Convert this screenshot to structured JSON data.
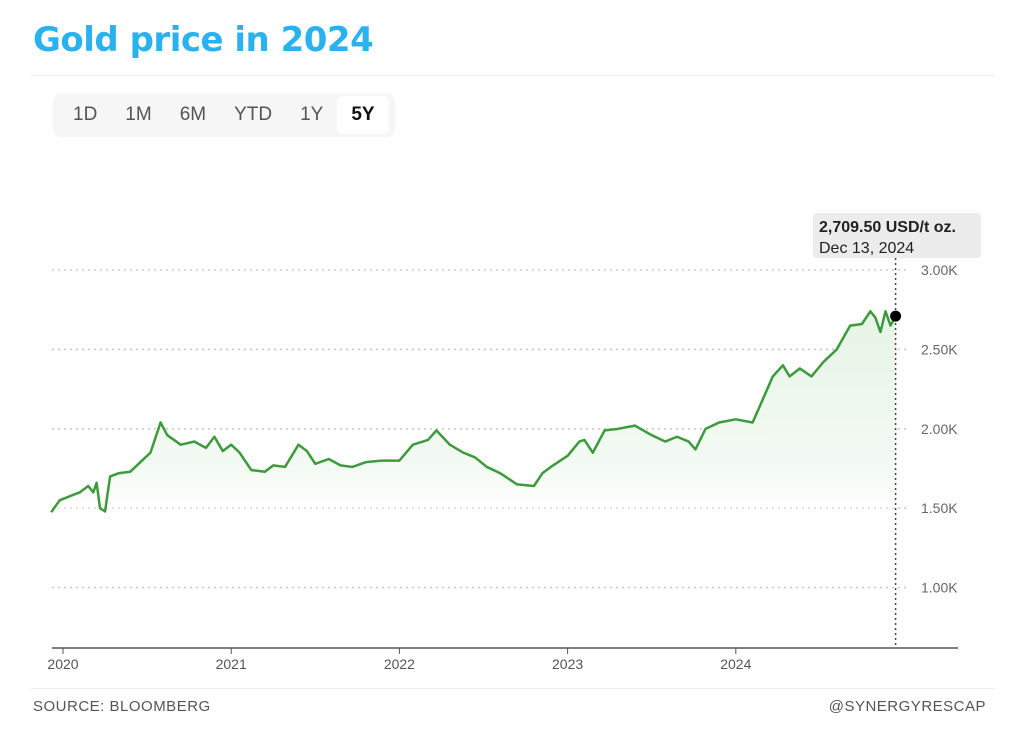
{
  "title": "Gold price in 2024",
  "tabs": [
    {
      "label": "1D"
    },
    {
      "label": "1M"
    },
    {
      "label": "6M"
    },
    {
      "label": "YTD"
    },
    {
      "label": "1Y"
    },
    {
      "label": "5Y"
    }
  ],
  "active_tab": "5Y",
  "tooltip": {
    "value": "2,709.50 USD/t oz.",
    "date": "Dec 13, 2024"
  },
  "footer": {
    "source": "SOURCE: BLOOMBERG",
    "handle": "@SYNERGYRESCAP"
  },
  "colors": {
    "title": "#29b2ef",
    "line": "#3d9a3d",
    "fill": "#e6f4e6"
  },
  "chart_data": {
    "type": "line",
    "title": "Gold price in 2024",
    "xlabel": "",
    "ylabel": "USD/t oz.",
    "ylim": [
      620,
      3000
    ],
    "xlim": [
      2019.93,
      2025.3
    ],
    "yticks": [
      {
        "v": 3000,
        "label": "3.00K"
      },
      {
        "v": 2500,
        "label": "2.50K"
      },
      {
        "v": 2000,
        "label": "2.00K"
      },
      {
        "v": 1500,
        "label": "1.50K"
      },
      {
        "v": 1000,
        "label": "1.00K"
      }
    ],
    "xticks": [
      {
        "v": 2020,
        "label": "2020"
      },
      {
        "v": 2021,
        "label": "2021"
      },
      {
        "v": 2022,
        "label": "2022"
      },
      {
        "v": 2023,
        "label": "2023"
      },
      {
        "v": 2024,
        "label": "2024"
      }
    ],
    "grid": true,
    "series": [
      {
        "name": "Gold",
        "x": [
          2019.93,
          2019.98,
          2020.05,
          2020.1,
          2020.15,
          2020.18,
          2020.2,
          2020.22,
          2020.25,
          2020.28,
          2020.33,
          2020.4,
          2020.47,
          2020.52,
          2020.58,
          2020.62,
          2020.7,
          2020.78,
          2020.85,
          2020.9,
          2020.95,
          2021.0,
          2021.05,
          2021.12,
          2021.2,
          2021.25,
          2021.32,
          2021.4,
          2021.45,
          2021.5,
          2021.58,
          2021.65,
          2021.72,
          2021.8,
          2021.9,
          2022.0,
          2022.08,
          2022.17,
          2022.22,
          2022.3,
          2022.38,
          2022.45,
          2022.52,
          2022.6,
          2022.7,
          2022.8,
          2022.85,
          2022.9,
          2023.0,
          2023.07,
          2023.1,
          2023.15,
          2023.22,
          2023.3,
          2023.4,
          2023.5,
          2023.58,
          2023.65,
          2023.72,
          2023.76,
          2023.82,
          2023.9,
          2024.0,
          2024.1,
          2024.15,
          2024.22,
          2024.28,
          2024.32,
          2024.38,
          2024.45,
          2024.52,
          2024.6,
          2024.68,
          2024.75,
          2024.8,
          2024.83,
          2024.86,
          2024.89,
          2024.92,
          2024.95
        ],
        "y": [
          1475,
          1550,
          1580,
          1600,
          1640,
          1600,
          1660,
          1500,
          1480,
          1700,
          1720,
          1730,
          1800,
          1850,
          2040,
          1960,
          1900,
          1920,
          1880,
          1950,
          1860,
          1900,
          1850,
          1740,
          1730,
          1770,
          1760,
          1900,
          1860,
          1780,
          1810,
          1770,
          1760,
          1790,
          1800,
          1800,
          1900,
          1930,
          1990,
          1900,
          1850,
          1820,
          1760,
          1720,
          1650,
          1640,
          1720,
          1760,
          1830,
          1920,
          1930,
          1850,
          1990,
          2000,
          2020,
          1960,
          1920,
          1950,
          1920,
          1870,
          2000,
          2040,
          2060,
          2040,
          2160,
          2330,
          2400,
          2330,
          2380,
          2330,
          2420,
          2500,
          2650,
          2660,
          2740,
          2700,
          2610,
          2740,
          2650,
          2709.5
        ]
      }
    ],
    "last_point": {
      "x": 2024.95,
      "y": 2709.5
    }
  }
}
